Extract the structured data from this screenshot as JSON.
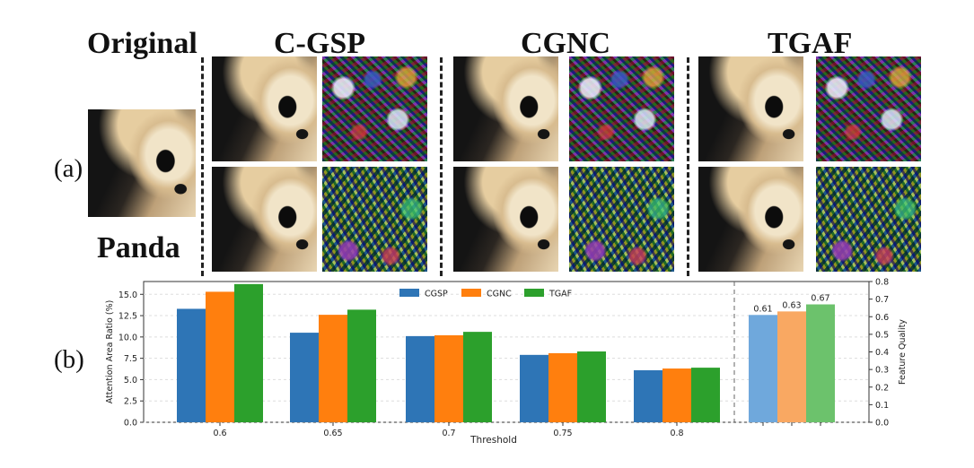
{
  "panel_a": {
    "label": "(a)",
    "original_heading": "Original",
    "image_label": "Panda",
    "method_headings": [
      "C-GSP",
      "CGNC",
      "TGAF"
    ]
  },
  "panel_b": {
    "label": "(b)"
  },
  "chart_data": {
    "type": "bar",
    "xlabel": "Threshold",
    "ylabel": "Attention Area Ratio (%)",
    "y2label": "Feature Quality",
    "categories": [
      "0.6",
      "0.65",
      "0.7",
      "0.75",
      "0.8"
    ],
    "ylim": [
      0,
      16.5
    ],
    "yticks": [
      "0.0",
      "2.5",
      "5.0",
      "7.5",
      "10.0",
      "12.5",
      "15.0"
    ],
    "y2lim": [
      0,
      0.8
    ],
    "y2ticks": [
      "0.0",
      "0.1",
      "0.2",
      "0.3",
      "0.4",
      "0.5",
      "0.6",
      "0.7",
      "0.8"
    ],
    "grid": true,
    "legend_position": "top-center",
    "series": [
      {
        "name": "CGSP",
        "color": "#2e75b6",
        "values": [
          13.3,
          10.5,
          10.1,
          7.9,
          6.1
        ]
      },
      {
        "name": "CGNC",
        "color": "#ff7f0e",
        "values": [
          15.3,
          12.6,
          10.2,
          8.1,
          6.3
        ]
      },
      {
        "name": "TGAF",
        "color": "#2ca02c",
        "values": [
          16.2,
          13.2,
          10.6,
          8.3,
          6.4
        ]
      }
    ],
    "feature_quality": {
      "values": [
        0.61,
        0.63,
        0.67
      ],
      "labels": [
        "0.61",
        "0.63",
        "0.67"
      ],
      "colors": [
        "#6fa8dc",
        "#f9a862",
        "#6cc26c"
      ]
    }
  }
}
